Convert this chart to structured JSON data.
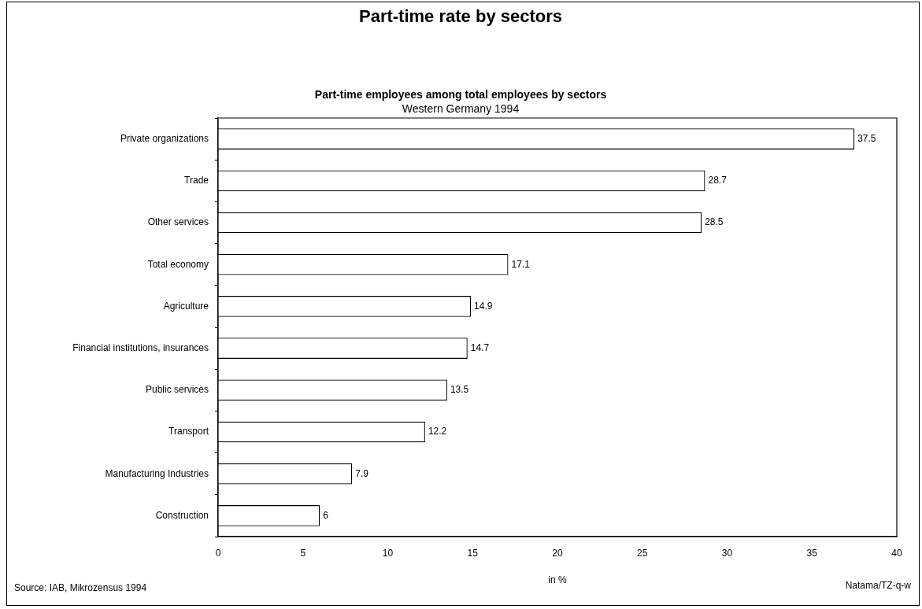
{
  "chart_data": {
    "type": "bar",
    "orientation": "horizontal",
    "title": "Part-time rate by sectors",
    "subtitle": "Part-time employees among total employees by sectors",
    "xlabel": "in %",
    "categories": [
      "Private organizations",
      "Trade",
      "Other services",
      "Total economy",
      "Agriculture",
      "Financial institutions, insurances",
      "Public services",
      "Transport",
      "Manufacturing Industries",
      "Construction"
    ],
    "values": [
      37.5,
      28.7,
      28.5,
      17.1,
      14.9,
      14.7,
      13.5,
      12.2,
      7.9,
      6
    ],
    "color": "#ffffff",
    "data_labels": true,
    "xlim": [
      0,
      40
    ],
    "xticks": [
      0,
      5,
      10,
      15,
      20,
      25,
      30,
      35,
      40
    ],
    "grid": false,
    "legend": false,
    "annotations": [
      "Western Germany 1994",
      "Source: IAB, Mikrozensus 1994",
      "Natama/TZ-q-w"
    ]
  }
}
